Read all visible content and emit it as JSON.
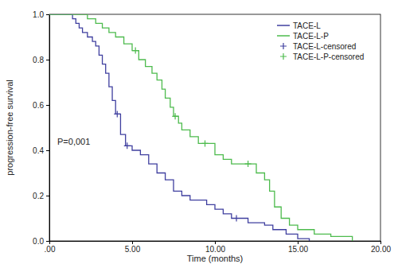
{
  "chart_data": {
    "type": "line",
    "x_label": "Time (months)",
    "y_label": "progression-free survival",
    "annotations": [
      "P=0,001"
    ],
    "xlim": [
      0,
      20
    ],
    "xticks": [
      {
        "value": 0,
        "label": ".00"
      },
      {
        "value": 5,
        "label": "5.00"
      },
      {
        "value": 10,
        "label": "10.00"
      },
      {
        "value": 15,
        "label": "15.00"
      },
      {
        "value": 20,
        "label": "20.00"
      }
    ],
    "ylim": [
      0,
      1
    ],
    "yticks": [
      {
        "value": 0,
        "label": "0.0"
      },
      0.2,
      0.4,
      0.6,
      0.8,
      {
        "value": 1,
        "label": "1.0"
      }
    ],
    "grid": false,
    "legend": "upper right",
    "series": [
      {
        "name": "TACE-L",
        "color": "#3f3f9f",
        "type": "line",
        "line_style": "step",
        "x": [
          0,
          1.4,
          1.6,
          1.8,
          2.0,
          2.3,
          2.6,
          2.8,
          3.0,
          3.2,
          3.4,
          3.6,
          3.8,
          4.0,
          4.3,
          4.6,
          5.0,
          5.5,
          6.0,
          6.5,
          7.0,
          7.5,
          8.0,
          8.5,
          9.5,
          10.0,
          10.5,
          11.0,
          12.0,
          13.0,
          13.5,
          14.3,
          15.0,
          15.7
        ],
        "values": [
          1.0,
          0.98,
          0.96,
          0.94,
          0.92,
          0.9,
          0.88,
          0.86,
          0.82,
          0.78,
          0.74,
          0.68,
          0.62,
          0.56,
          0.47,
          0.42,
          0.4,
          0.38,
          0.34,
          0.3,
          0.27,
          0.22,
          0.2,
          0.18,
          0.16,
          0.14,
          0.12,
          0.1,
          0.08,
          0.07,
          0.05,
          0.03,
          0.01,
          0.0
        ]
      },
      {
        "name": "TACE-L-P",
        "color": "#4dbb4d",
        "type": "line",
        "line_style": "step",
        "x": [
          0,
          2.3,
          2.8,
          3.2,
          3.6,
          4.0,
          4.5,
          5.0,
          5.4,
          5.8,
          6.2,
          6.5,
          6.8,
          7.0,
          7.3,
          7.5,
          7.8,
          8.0,
          8.5,
          9.0,
          10.0,
          10.5,
          11.0,
          12.5,
          13.0,
          13.3,
          13.6,
          14.0,
          14.5,
          15.0,
          16.0,
          17.0,
          18.3
        ],
        "values": [
          1.0,
          0.98,
          0.96,
          0.94,
          0.92,
          0.9,
          0.87,
          0.84,
          0.8,
          0.77,
          0.74,
          0.71,
          0.67,
          0.63,
          0.59,
          0.55,
          0.52,
          0.49,
          0.46,
          0.43,
          0.38,
          0.36,
          0.34,
          0.3,
          0.27,
          0.22,
          0.15,
          0.1,
          0.07,
          0.05,
          0.03,
          0.02,
          0.0
        ]
      },
      {
        "name": "TACE-L-censored",
        "color": "#3f3f9f",
        "type": "scatter",
        "marker": "plus",
        "x": [
          4.1,
          4.7,
          11.3
        ],
        "values": [
          0.56,
          0.42,
          0.1
        ]
      },
      {
        "name": "TACE-L-P-censored",
        "color": "#4dbb4d",
        "type": "scatter",
        "marker": "plus",
        "x": [
          5.2,
          7.6,
          9.4,
          12.0
        ],
        "values": [
          0.84,
          0.55,
          0.43,
          0.34
        ]
      }
    ]
  }
}
